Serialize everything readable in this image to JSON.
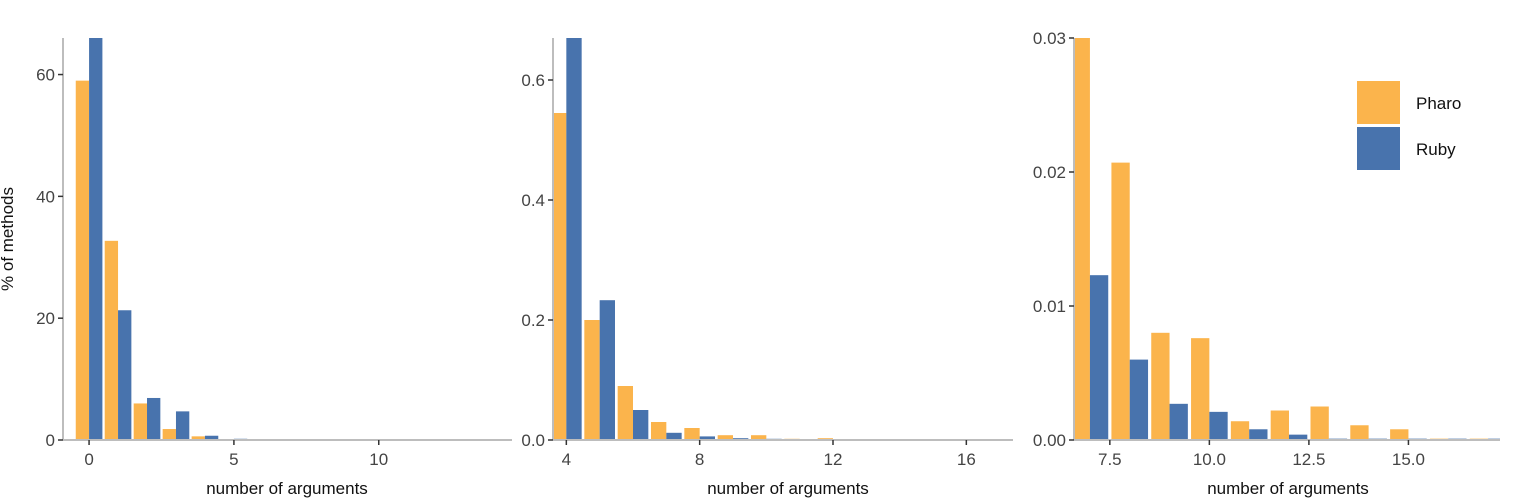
{
  "colors": {
    "pharo": "#fbb44c",
    "ruby": "#4873ad",
    "axis": "#bdbdbd"
  },
  "legend": {
    "position": "top-right",
    "entries": [
      "Pharo",
      "Ruby"
    ]
  },
  "chart_data": [
    {
      "type": "bar",
      "xlabel": "number of arguments",
      "ylabel": "% of methods",
      "xlim": [
        -0.9,
        14.6
      ],
      "ylim": [
        0,
        66
      ],
      "xticks": [
        0,
        5,
        10
      ],
      "xtick_labels": [
        "0",
        "5",
        "10"
      ],
      "yticks": [
        0,
        20,
        40,
        60
      ],
      "ytick_labels": [
        "0",
        "20",
        "40",
        "60"
      ],
      "x": [
        0,
        1,
        2,
        3,
        4,
        5,
        6,
        7,
        8,
        9,
        10,
        11,
        12,
        13,
        14,
        15,
        16
      ],
      "series": [
        {
          "name": "Pharo",
          "values": [
            59,
            32.7,
            6,
            1.8,
            0.6,
            0.08,
            0.03,
            0.02,
            0.01,
            0.01,
            0.005,
            0,
            0,
            0,
            0,
            0,
            0
          ]
        },
        {
          "name": "Ruby",
          "values": [
            66.5,
            21.3,
            6.9,
            4.7,
            0.7,
            0.2,
            0.05,
            0.02,
            0.01,
            0.01,
            0.005,
            0.002,
            0.002,
            0.002,
            0.002,
            0.002,
            0.002
          ]
        }
      ]
    },
    {
      "type": "bar",
      "xlabel": "number of arguments",
      "ylabel": "",
      "xlim": [
        3.6,
        17.4
      ],
      "ylim": [
        0,
        0.67
      ],
      "xticks": [
        4,
        8,
        12,
        16
      ],
      "xtick_labels": [
        "4",
        "8",
        "12",
        "16"
      ],
      "yticks": [
        0,
        0.2,
        0.4,
        0.6
      ],
      "ytick_labels": [
        "0.0",
        "0.2",
        "0.4",
        "0.6"
      ],
      "x": [
        4,
        5,
        6,
        7,
        8,
        9,
        10,
        11,
        12,
        13,
        14,
        15,
        16,
        17
      ],
      "series": [
        {
          "name": "Pharo",
          "values": [
            0.545,
            0.2,
            0.09,
            0.03,
            0.02,
            0.008,
            0.008,
            0.002,
            0.003,
            0.001,
            0.001,
            0.001,
            0.001,
            0.001
          ]
        },
        {
          "name": "Ruby",
          "values": [
            0.67,
            0.233,
            0.05,
            0.012,
            0.006,
            0.003,
            0.002,
            0.001,
            0.001,
            0.001,
            0.001,
            0.001,
            0.001,
            0.001
          ]
        }
      ]
    },
    {
      "type": "bar",
      "xlabel": "number of arguments",
      "ylabel": "",
      "xlim": [
        6.6,
        17.3
      ],
      "ylim": [
        0,
        0.03
      ],
      "xticks": [
        7.5,
        10,
        12.5,
        15
      ],
      "xtick_labels": [
        "7.5",
        "10.0",
        "12.5",
        "15.0"
      ],
      "yticks": [
        0,
        0.01,
        0.02,
        0.03
      ],
      "ytick_labels": [
        "0.00",
        "0.01",
        "0.02",
        "0.03"
      ],
      "x": [
        7,
        8,
        9,
        10,
        11,
        12,
        13,
        14,
        15,
        16,
        17
      ],
      "series": [
        {
          "name": "Pharo",
          "values": [
            0.0302,
            0.0207,
            0.008,
            0.0076,
            0.0014,
            0.0022,
            0.0025,
            0.0011,
            0.0008,
            0.0001,
            0.0001
          ]
        },
        {
          "name": "Ruby",
          "values": [
            0.0123,
            0.006,
            0.0027,
            0.0021,
            0.0008,
            0.0004,
            0.0001,
            0.0001,
            0.0001,
            0.0001,
            0.0001
          ]
        }
      ]
    }
  ]
}
